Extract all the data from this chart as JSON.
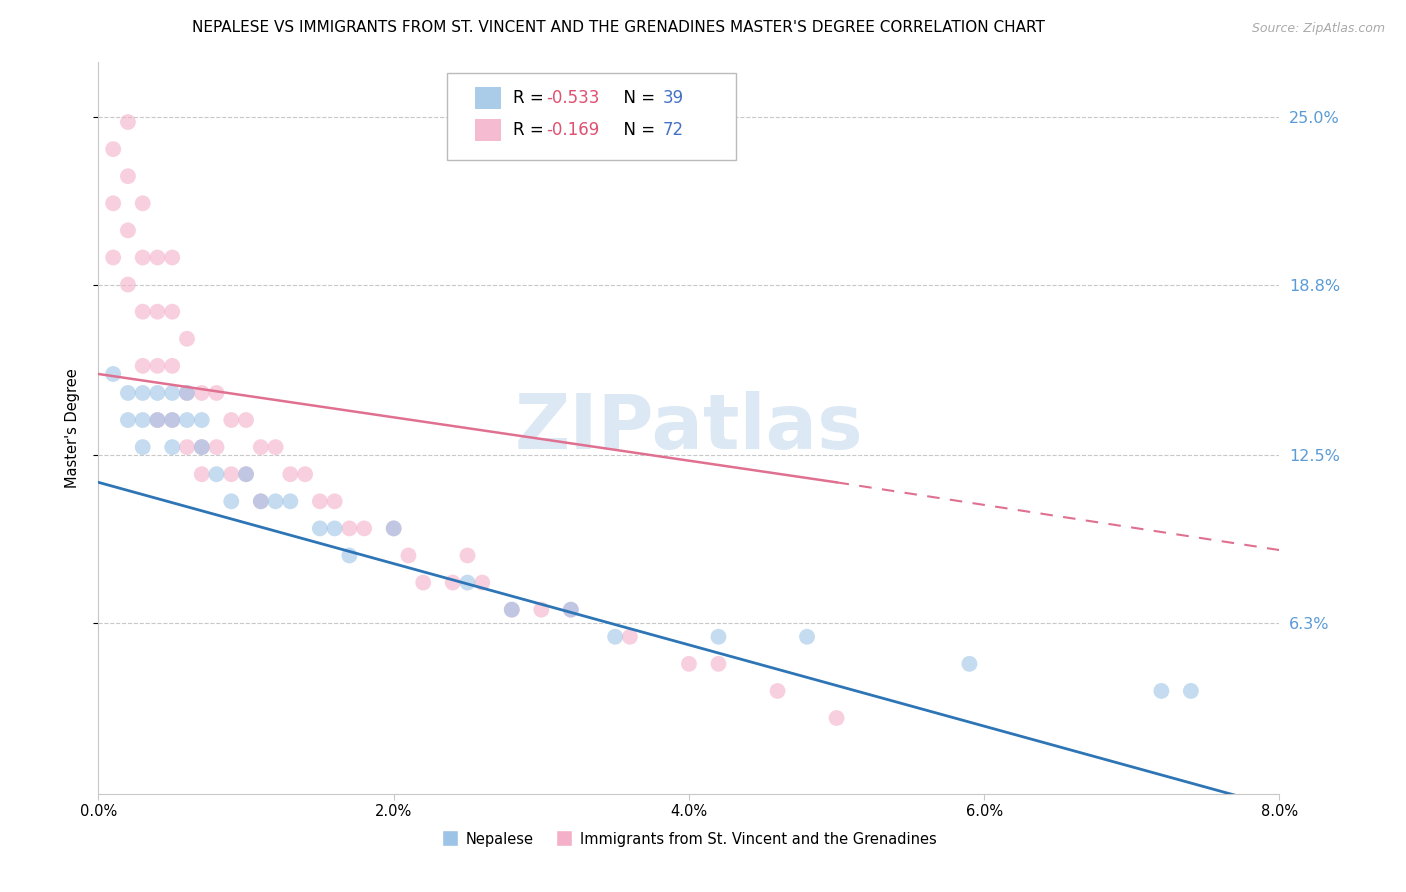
{
  "title": "NEPALESE VS IMMIGRANTS FROM ST. VINCENT AND THE GRENADINES MASTER'S DEGREE CORRELATION CHART",
  "source": "Source: ZipAtlas.com",
  "ylabel": "Master's Degree",
  "right_ytick_labels": [
    "25.0%",
    "18.8%",
    "12.5%",
    "6.3%"
  ],
  "right_ytick_values": [
    0.25,
    0.188,
    0.125,
    0.063
  ],
  "xlim": [
    0.0,
    0.08
  ],
  "ylim": [
    0.0,
    0.27
  ],
  "xtick_labels": [
    "0.0%",
    "2.0%",
    "4.0%",
    "6.0%",
    "8.0%"
  ],
  "xtick_values": [
    0.0,
    0.02,
    0.04,
    0.06,
    0.08
  ],
  "nepalese_color": "#9dc3e6",
  "svg_color": "#f4b0c8",
  "blue_line_color": "#2e75b6",
  "pink_line_color": "#e07090",
  "grid_color": "#c8c8c8",
  "right_tick_color": "#5b9bd5",
  "background_color": "#ffffff",
  "watermark_color": "#dce9f5",
  "dot_size": 130,
  "legend_r_color": "#e05070",
  "legend_n_color": "#4472c4",
  "nepalese_x": [
    0.001,
    0.002,
    0.002,
    0.003,
    0.003,
    0.003,
    0.004,
    0.004,
    0.005,
    0.005,
    0.005,
    0.006,
    0.006,
    0.007,
    0.007,
    0.008,
    0.009,
    0.01,
    0.011,
    0.012,
    0.013,
    0.015,
    0.016,
    0.017,
    0.02,
    0.025,
    0.028,
    0.032,
    0.035,
    0.042,
    0.048,
    0.059,
    0.072,
    0.074
  ],
  "nepalese_y": [
    0.155,
    0.148,
    0.138,
    0.148,
    0.138,
    0.128,
    0.148,
    0.138,
    0.148,
    0.138,
    0.128,
    0.148,
    0.138,
    0.128,
    0.138,
    0.118,
    0.108,
    0.118,
    0.108,
    0.108,
    0.108,
    0.098,
    0.098,
    0.088,
    0.098,
    0.078,
    0.068,
    0.068,
    0.058,
    0.058,
    0.058,
    0.048,
    0.038,
    0.038
  ],
  "svg_x": [
    0.001,
    0.001,
    0.001,
    0.002,
    0.002,
    0.002,
    0.002,
    0.003,
    0.003,
    0.003,
    0.003,
    0.004,
    0.004,
    0.004,
    0.004,
    0.005,
    0.005,
    0.005,
    0.005,
    0.006,
    0.006,
    0.006,
    0.007,
    0.007,
    0.007,
    0.008,
    0.008,
    0.009,
    0.009,
    0.01,
    0.01,
    0.011,
    0.011,
    0.012,
    0.013,
    0.014,
    0.015,
    0.016,
    0.017,
    0.018,
    0.02,
    0.021,
    0.022,
    0.024,
    0.025,
    0.026,
    0.028,
    0.03,
    0.032,
    0.036,
    0.04,
    0.042,
    0.046,
    0.05
  ],
  "svg_y": [
    0.238,
    0.218,
    0.198,
    0.248,
    0.228,
    0.208,
    0.188,
    0.218,
    0.198,
    0.178,
    0.158,
    0.198,
    0.178,
    0.158,
    0.138,
    0.198,
    0.178,
    0.158,
    0.138,
    0.168,
    0.148,
    0.128,
    0.148,
    0.128,
    0.118,
    0.148,
    0.128,
    0.138,
    0.118,
    0.138,
    0.118,
    0.128,
    0.108,
    0.128,
    0.118,
    0.118,
    0.108,
    0.108,
    0.098,
    0.098,
    0.098,
    0.088,
    0.078,
    0.078,
    0.088,
    0.078,
    0.068,
    0.068,
    0.068,
    0.058,
    0.048,
    0.048,
    0.038,
    0.028
  ],
  "blue_line": [
    [
      0.0,
      0.115
    ],
    [
      0.08,
      -0.005
    ]
  ],
  "pink_line": [
    [
      0.0,
      0.155
    ],
    [
      0.05,
      0.115
    ]
  ],
  "pink_dashed_line": [
    [
      0.05,
      0.115
    ],
    [
      0.08,
      0.09
    ]
  ],
  "title_fontsize": 11,
  "tick_fontsize": 10.5,
  "legend_fontsize": 12
}
